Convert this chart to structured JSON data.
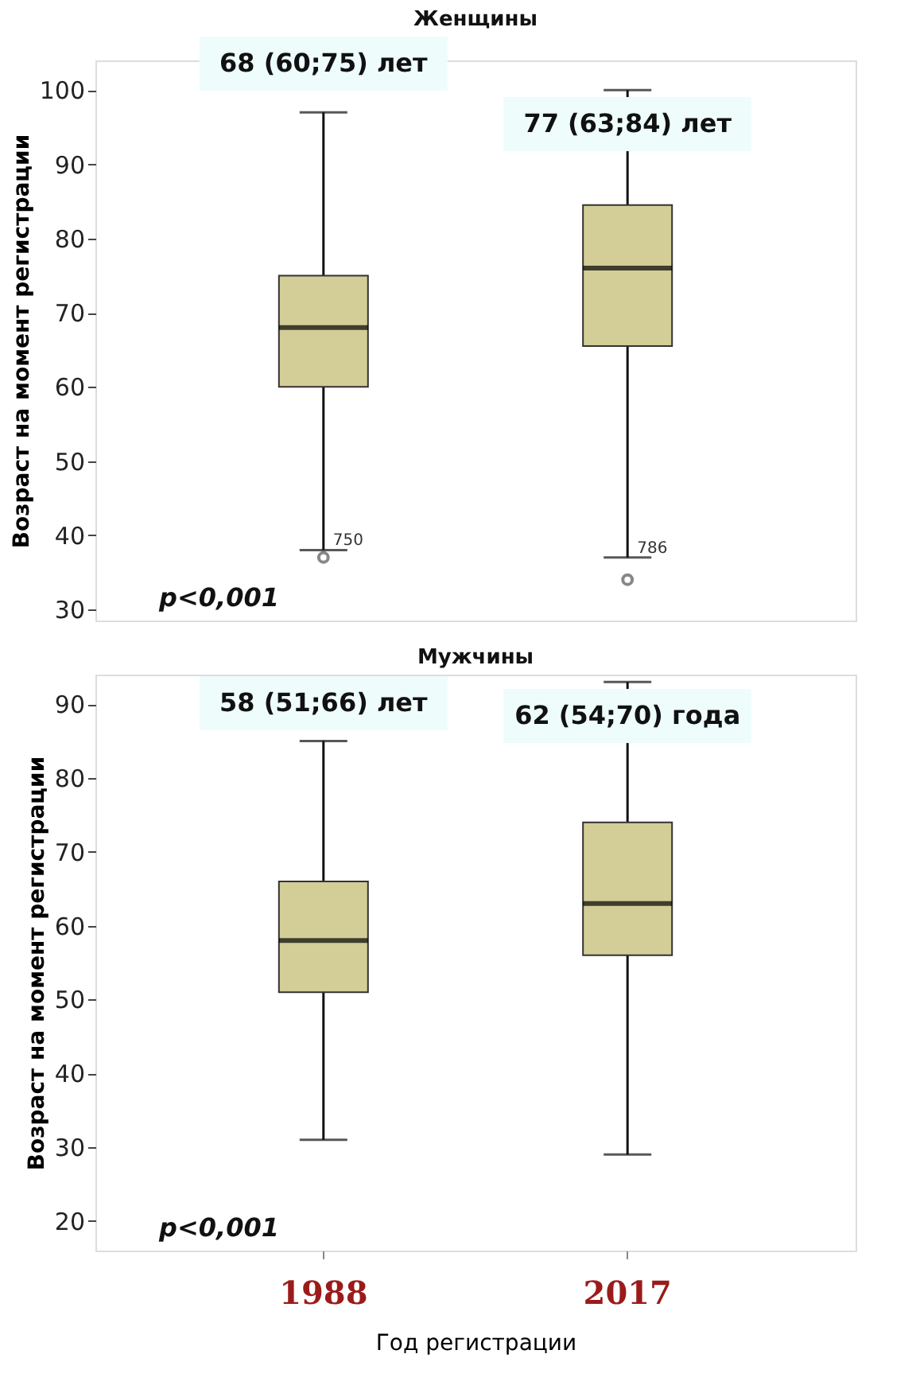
{
  "chart_data": [
    {
      "type": "box",
      "title": "Женщины",
      "ylabel": "Возраст на момент регистрации",
      "categories": [
        "1988",
        "2017"
      ],
      "ylim": [
        28.5,
        104
      ],
      "yticks": [
        30,
        40,
        50,
        60,
        70,
        80,
        90,
        100
      ],
      "tick_labels": "y",
      "color": "#d3cd97",
      "boxes": [
        {
          "low": 38,
          "q1": 60,
          "median": 68,
          "q3": 75,
          "high": 97,
          "outliers": [
            37
          ]
        },
        {
          "low": 37,
          "q1": 65.5,
          "median": 76,
          "q3": 84.5,
          "high": 100,
          "outliers": [
            34
          ]
        }
      ],
      "annotations": [
        "68 (60;75) лет",
        "77 (63;84) лет",
        "750",
        "786",
        "p<0,001"
      ]
    },
    {
      "type": "box",
      "title": "Мужчины",
      "xlabel": "Год регистрации",
      "ylabel": "Возраст на момент регистрации",
      "categories": [
        "1988",
        "2017"
      ],
      "ylim": [
        16,
        94
      ],
      "yticks": [
        20,
        30,
        40,
        50,
        60,
        70,
        80,
        90
      ],
      "color": "#d3cd97",
      "boxes": [
        {
          "low": 31,
          "q1": 51,
          "median": 58,
          "q3": 66,
          "high": 85
        },
        {
          "low": 29,
          "q1": 56,
          "median": 63,
          "q3": 74,
          "high": 93
        }
      ],
      "annotations": [
        "58 (51;66) лет",
        "62 (54;70) года",
        "p<0,001"
      ]
    }
  ]
}
